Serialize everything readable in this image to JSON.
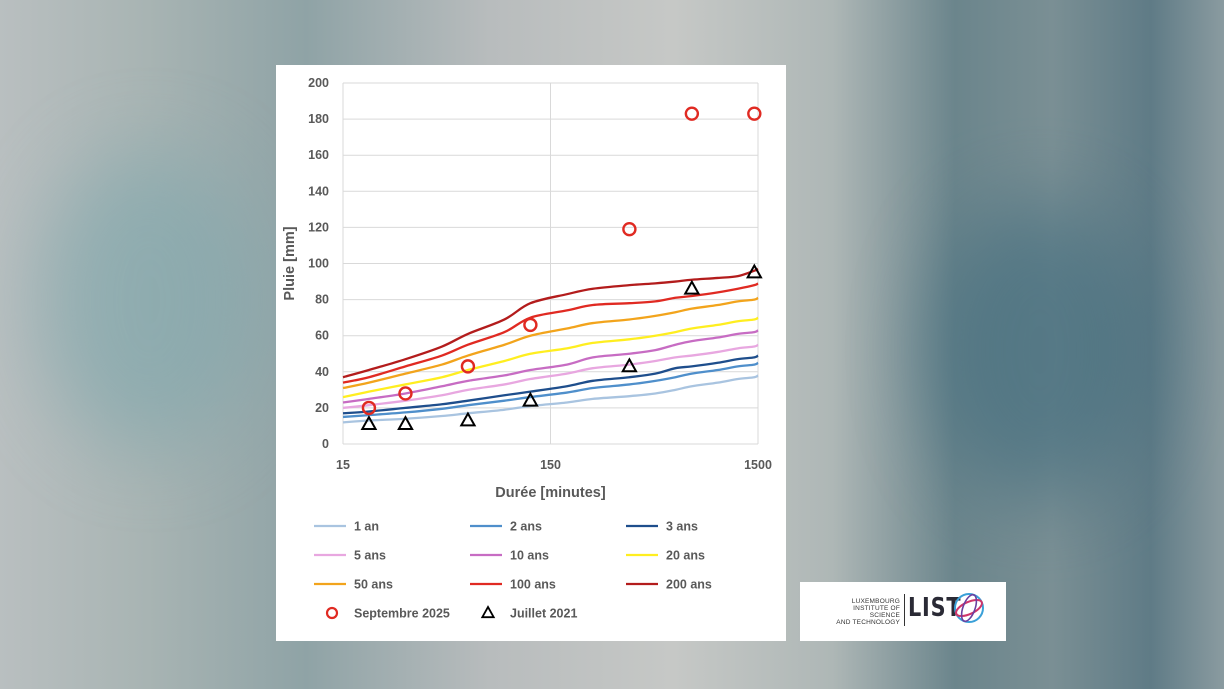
{
  "chart_data": {
    "type": "line",
    "xlabel": "Durée [minutes]",
    "ylabel": "Pluie [mm]",
    "x_scale": "log",
    "xlim": [
      15,
      1500
    ],
    "ylim": [
      0,
      200
    ],
    "x_ticks": [
      15,
      150,
      1500
    ],
    "y_ticks": [
      0,
      20,
      40,
      60,
      80,
      100,
      120,
      140,
      160,
      180,
      200
    ],
    "grid": true,
    "legend_position": "bottom",
    "series": [
      {
        "name": "1 an",
        "color": "#a9c4e0",
        "kind": "line",
        "x": [
          15,
          20,
          30,
          45,
          60,
          90,
          120,
          180,
          240,
          360,
          480,
          600,
          720,
          960,
          1200,
          1440,
          1500
        ],
        "y": [
          12,
          13,
          14,
          15.5,
          17,
          19,
          21,
          23,
          25,
          26.5,
          28,
          30,
          32,
          34,
          36,
          37,
          38
        ]
      },
      {
        "name": "2 ans",
        "color": "#4f8fcb",
        "kind": "line",
        "x": [
          15,
          20,
          30,
          45,
          60,
          90,
          120,
          180,
          240,
          360,
          480,
          600,
          720,
          960,
          1200,
          1440,
          1500
        ],
        "y": [
          15,
          16,
          17.5,
          19.5,
          21.5,
          24,
          26,
          28.5,
          31,
          33,
          35,
          37,
          39,
          41,
          43,
          44,
          45
        ]
      },
      {
        "name": "3 ans",
        "color": "#1e4e8c",
        "kind": "line",
        "x": [
          15,
          20,
          30,
          45,
          60,
          90,
          120,
          180,
          240,
          360,
          480,
          600,
          720,
          960,
          1200,
          1440,
          1500
        ],
        "y": [
          17,
          18,
          20,
          22,
          24,
          27,
          29,
          32,
          35,
          37,
          39,
          42,
          43,
          45,
          47,
          48,
          49
        ]
      },
      {
        "name": "5 ans",
        "color": "#e8a7e0",
        "kind": "line",
        "x": [
          15,
          20,
          30,
          45,
          60,
          90,
          120,
          180,
          240,
          360,
          480,
          600,
          720,
          960,
          1200,
          1440,
          1500
        ],
        "y": [
          20,
          21.5,
          24,
          27,
          30,
          33,
          36,
          39,
          42,
          44,
          46,
          48,
          49,
          51,
          53,
          54,
          55
        ]
      },
      {
        "name": "10 ans",
        "color": "#c76cc3",
        "kind": "line",
        "x": [
          15,
          20,
          30,
          45,
          60,
          90,
          120,
          180,
          240,
          360,
          480,
          600,
          720,
          960,
          1200,
          1440,
          1500
        ],
        "y": [
          23,
          25,
          28,
          32,
          35,
          38,
          41,
          44,
          48,
          50,
          52,
          55,
          57,
          59,
          61,
          62,
          63
        ]
      },
      {
        "name": "20 ans",
        "color": "#ffee20",
        "kind": "line",
        "x": [
          15,
          20,
          30,
          45,
          60,
          90,
          120,
          180,
          240,
          360,
          480,
          600,
          720,
          960,
          1200,
          1440,
          1500
        ],
        "y": [
          26,
          29,
          33,
          37,
          41,
          46,
          50,
          53,
          56,
          58,
          60,
          62,
          64,
          66,
          68,
          69,
          70
        ]
      },
      {
        "name": "50 ans",
        "color": "#f2a41c",
        "kind": "line",
        "x": [
          15,
          20,
          30,
          45,
          60,
          90,
          120,
          180,
          240,
          360,
          480,
          600,
          720,
          960,
          1200,
          1440,
          1500
        ],
        "y": [
          31,
          34,
          39,
          44,
          49,
          55,
          60,
          64,
          67,
          69,
          71,
          73,
          75,
          77,
          79,
          80,
          81
        ]
      },
      {
        "name": "100 ans",
        "color": "#e02a22",
        "kind": "line",
        "x": [
          15,
          20,
          30,
          45,
          60,
          90,
          120,
          180,
          240,
          360,
          480,
          600,
          720,
          960,
          1200,
          1440,
          1500
        ],
        "y": [
          34,
          37,
          43,
          49,
          55,
          62,
          70,
          74,
          77,
          78,
          79,
          81,
          82,
          84,
          86,
          88,
          89
        ]
      },
      {
        "name": "200 ans",
        "color": "#b31c1c",
        "kind": "line",
        "x": [
          15,
          20,
          30,
          45,
          60,
          90,
          120,
          180,
          240,
          360,
          480,
          600,
          720,
          960,
          1200,
          1440,
          1500
        ],
        "y": [
          37,
          41,
          47,
          54,
          61,
          69,
          78,
          83,
          86,
          88,
          89,
          90,
          91,
          92,
          93,
          96,
          97
        ]
      },
      {
        "name": "Septembre 2025",
        "color": "#e02a22",
        "kind": "circle",
        "x": [
          20,
          30,
          60,
          120,
          360,
          720,
          1440
        ],
        "y": [
          20,
          28,
          43,
          66,
          119,
          183,
          183
        ]
      },
      {
        "name": "Juillet 2021",
        "color": "#000000",
        "kind": "triangle",
        "x": [
          20,
          30,
          60,
          120,
          360,
          720,
          1440
        ],
        "y": [
          11,
          11,
          13,
          24,
          43,
          86,
          95
        ]
      }
    ]
  },
  "logo": {
    "lines": [
      "LUXEMBOURG",
      "INSTITUTE OF SCIENCE",
      "AND TECHNOLOGY"
    ],
    "wordmark": "LIST"
  }
}
